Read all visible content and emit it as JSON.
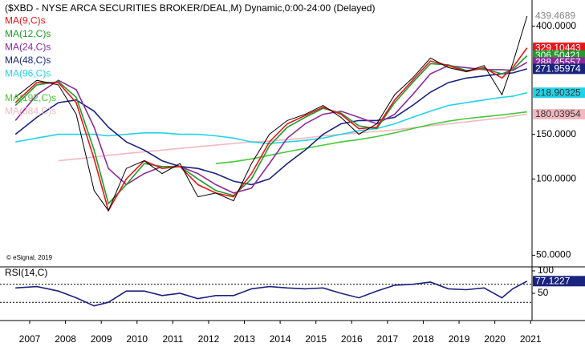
{
  "chart_data": [
    {
      "type": "line",
      "title": "($XBD - NYSE ARCA SECURITIES BROKER/DEAL,M) Dynamic,0:00-24:00 (Delayed)",
      "annotation": "© eSignal, 2019",
      "log_scale": true,
      "x": [
        2006.6,
        2007.2,
        2007.8,
        2008.3,
        2008.8,
        2009.2,
        2009.7,
        2010.2,
        2010.7,
        2011.2,
        2011.7,
        2012.2,
        2012.7,
        2013.2,
        2013.7,
        2014.2,
        2014.7,
        2015.2,
        2015.7,
        2016.2,
        2016.7,
        2017.2,
        2017.7,
        2018.2,
        2018.7,
        2019.2,
        2019.7,
        2020.2,
        2020.5,
        2020.9
      ],
      "xlim": [
        2006.17,
        2021.04
      ],
      "xticks": [
        2007,
        2008,
        2009,
        2010,
        2011,
        2012,
        2013,
        2014,
        2015,
        2016,
        2017,
        2018,
        2019,
        2020,
        2021
      ],
      "ylim": [
        46,
        490
      ],
      "yticks": [
        {
          "value": 400,
          "label": "400.0000"
        },
        {
          "value": 150,
          "label": "150.0000"
        },
        {
          "value": 100,
          "label": "100.0000"
        },
        {
          "value": 50,
          "label": "50.0000"
        }
      ],
      "series": [
        {
          "color": "#000000",
          "values": [
            210,
            245,
            235,
            180,
            90,
            75,
            110,
            118,
            105,
            115,
            85,
            88,
            82,
            115,
            150,
            170,
            180,
            195,
            175,
            150,
            165,
            215,
            250,
            300,
            275,
            265,
            280,
            215,
            285,
            439.4689
          ]
        },
        {
          "name": "MA(9,C)s",
          "color": "#e8141c",
          "values": [
            200,
            240,
            240,
            200,
            120,
            75,
            100,
            118,
            110,
            112,
            95,
            88,
            85,
            105,
            140,
            165,
            178,
            192,
            180,
            158,
            160,
            205,
            245,
            292,
            280,
            265,
            275,
            250,
            275,
            329.10443
          ]
        },
        {
          "name": "MA(12,C)s",
          "color": "#1f9b2a",
          "values": [
            195,
            235,
            242,
            210,
            130,
            80,
            95,
            115,
            112,
            112,
            100,
            90,
            86,
            100,
            135,
            160,
            175,
            190,
            182,
            162,
            158,
            200,
            240,
            285,
            282,
            268,
            272,
            260,
            270,
            306.50421
          ]
        },
        {
          "name": "MA(24,C)s",
          "color": "#8b2a9c",
          "values": [
            170,
            215,
            245,
            225,
            160,
            110,
            95,
            105,
            112,
            112,
            105,
            95,
            88,
            92,
            115,
            145,
            165,
            180,
            185,
            175,
            165,
            180,
            215,
            260,
            280,
            275,
            270,
            270,
            268,
            288.45557
          ]
        },
        {
          "name": "MA(48,C)s",
          "color": "#1a237e",
          "values": [
            150,
            175,
            200,
            205,
            185,
            160,
            140,
            130,
            118,
            112,
            110,
            105,
            98,
            95,
            100,
            115,
            130,
            150,
            165,
            170,
            170,
            175,
            195,
            220,
            240,
            250,
            255,
            260,
            262,
            271.95974
          ]
        },
        {
          "name": "MA(96,C)s",
          "color": "#22d3e8",
          "values": [
            140,
            145,
            150,
            150,
            150,
            148,
            150,
            152,
            152,
            150,
            150,
            148,
            145,
            140,
            138,
            140,
            142,
            145,
            150,
            155,
            158,
            165,
            175,
            185,
            195,
            200,
            205,
            210,
            212,
            218.90325
          ]
        },
        {
          "name": "MA(192,C)s",
          "color": "#44c93a",
          "values": [
            null,
            null,
            null,
            null,
            null,
            null,
            null,
            null,
            null,
            null,
            null,
            115,
            117,
            120,
            124,
            128,
            132,
            136,
            140,
            143,
            147,
            152,
            158,
            164,
            169,
            173,
            176,
            179,
            181,
            184
          ]
        },
        {
          "name": "MA(384,C)s",
          "color": "#f4b8c0",
          "values": [
            null,
            null,
            118,
            120,
            122,
            124,
            126,
            128,
            130,
            132,
            134,
            136,
            138,
            140,
            141,
            143,
            145,
            148,
            150,
            152,
            154,
            156,
            159,
            162,
            165,
            168,
            171,
            174,
            177,
            180.03954
          ]
        }
      ]
    },
    {
      "type": "line",
      "title": "RSI(14,C)",
      "ylim": [
        0,
        100
      ],
      "yticks": [
        100,
        50
      ],
      "reference_lines": [
        70,
        30
      ],
      "series": [
        {
          "color": "#1a237e",
          "values": [
            62,
            65,
            55,
            40,
            22,
            30,
            55,
            55,
            45,
            50,
            38,
            45,
            45,
            60,
            65,
            62,
            60,
            62,
            50,
            40,
            55,
            68,
            70,
            75,
            60,
            58,
            62,
            40,
            60,
            77.1227
          ]
        }
      ]
    }
  ]
}
